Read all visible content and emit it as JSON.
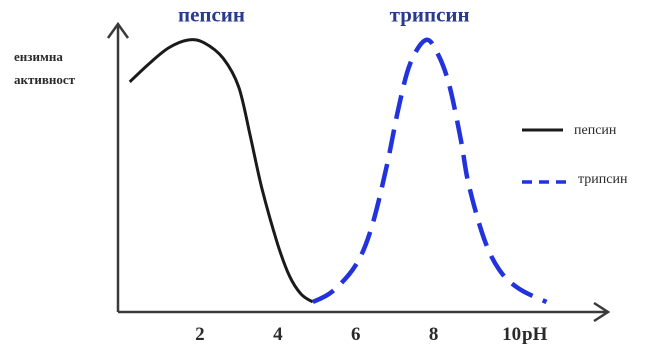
{
  "chart_data": {
    "type": "line",
    "ylabel": [
      "ензимна",
      "активност"
    ],
    "xlabel": "pH",
    "xlim": [
      0,
      11.5
    ],
    "ylim": [
      0,
      1
    ],
    "x_ticks": [
      "2",
      "4",
      "6",
      "8",
      "10"
    ],
    "grid": false,
    "legend_position": "right",
    "series": [
      {
        "name": "пепсин",
        "color": "#1a1a1a",
        "style": "solid",
        "points": [
          [
            0.3,
            0.84
          ],
          [
            0.8,
            0.91
          ],
          [
            1.3,
            0.97
          ],
          [
            1.8,
            1.0
          ],
          [
            2.2,
            0.99
          ],
          [
            2.7,
            0.93
          ],
          [
            3.1,
            0.82
          ],
          [
            3.4,
            0.63
          ],
          [
            3.7,
            0.43
          ],
          [
            4.1,
            0.22
          ],
          [
            4.4,
            0.1
          ],
          [
            4.7,
            0.03
          ],
          [
            5.0,
            0.0
          ]
        ]
      },
      {
        "name": "трипсин",
        "color": "#2233dd",
        "style": "dashed",
        "points": [
          [
            5.0,
            0.0
          ],
          [
            5.5,
            0.04
          ],
          [
            6.1,
            0.14
          ],
          [
            6.5,
            0.28
          ],
          [
            6.9,
            0.52
          ],
          [
            7.2,
            0.74
          ],
          [
            7.5,
            0.91
          ],
          [
            7.9,
            1.0
          ],
          [
            8.2,
            0.95
          ],
          [
            8.5,
            0.83
          ],
          [
            8.8,
            0.62
          ],
          [
            9.0,
            0.45
          ],
          [
            9.4,
            0.24
          ],
          [
            9.8,
            0.12
          ],
          [
            10.3,
            0.05
          ],
          [
            11.0,
            0.0
          ]
        ]
      }
    ],
    "annotations": [
      {
        "text": "пепсин",
        "x": 2.4,
        "y": 1.07
      },
      {
        "text": "трипсин",
        "x": 8.0,
        "y": 1.07
      }
    ]
  }
}
